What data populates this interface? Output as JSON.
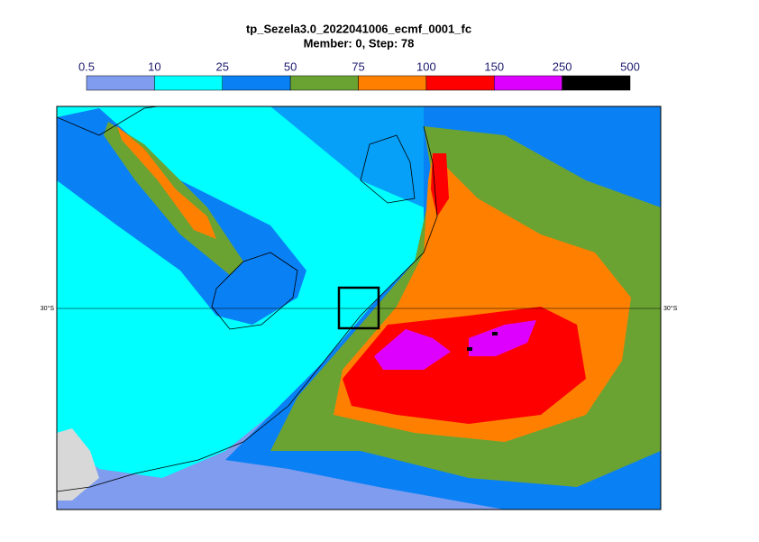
{
  "header": {
    "title": "tp_Sezela3.0_2022041006_ecmf_0001_fc",
    "subtitle": "Member: 0, Step: 78"
  },
  "colorbar": {
    "ticks": [
      0.5,
      10,
      25,
      50,
      75,
      100,
      150,
      250,
      500
    ],
    "colors": [
      "#7f9cee",
      "#00ffff",
      "#0a80f5",
      "#6aa332",
      "#ff8000",
      "#ff0000",
      "#dd00ff",
      "#000000"
    ]
  },
  "map": {
    "lat_labels": [
      "30°S",
      "30°S"
    ]
  }
}
